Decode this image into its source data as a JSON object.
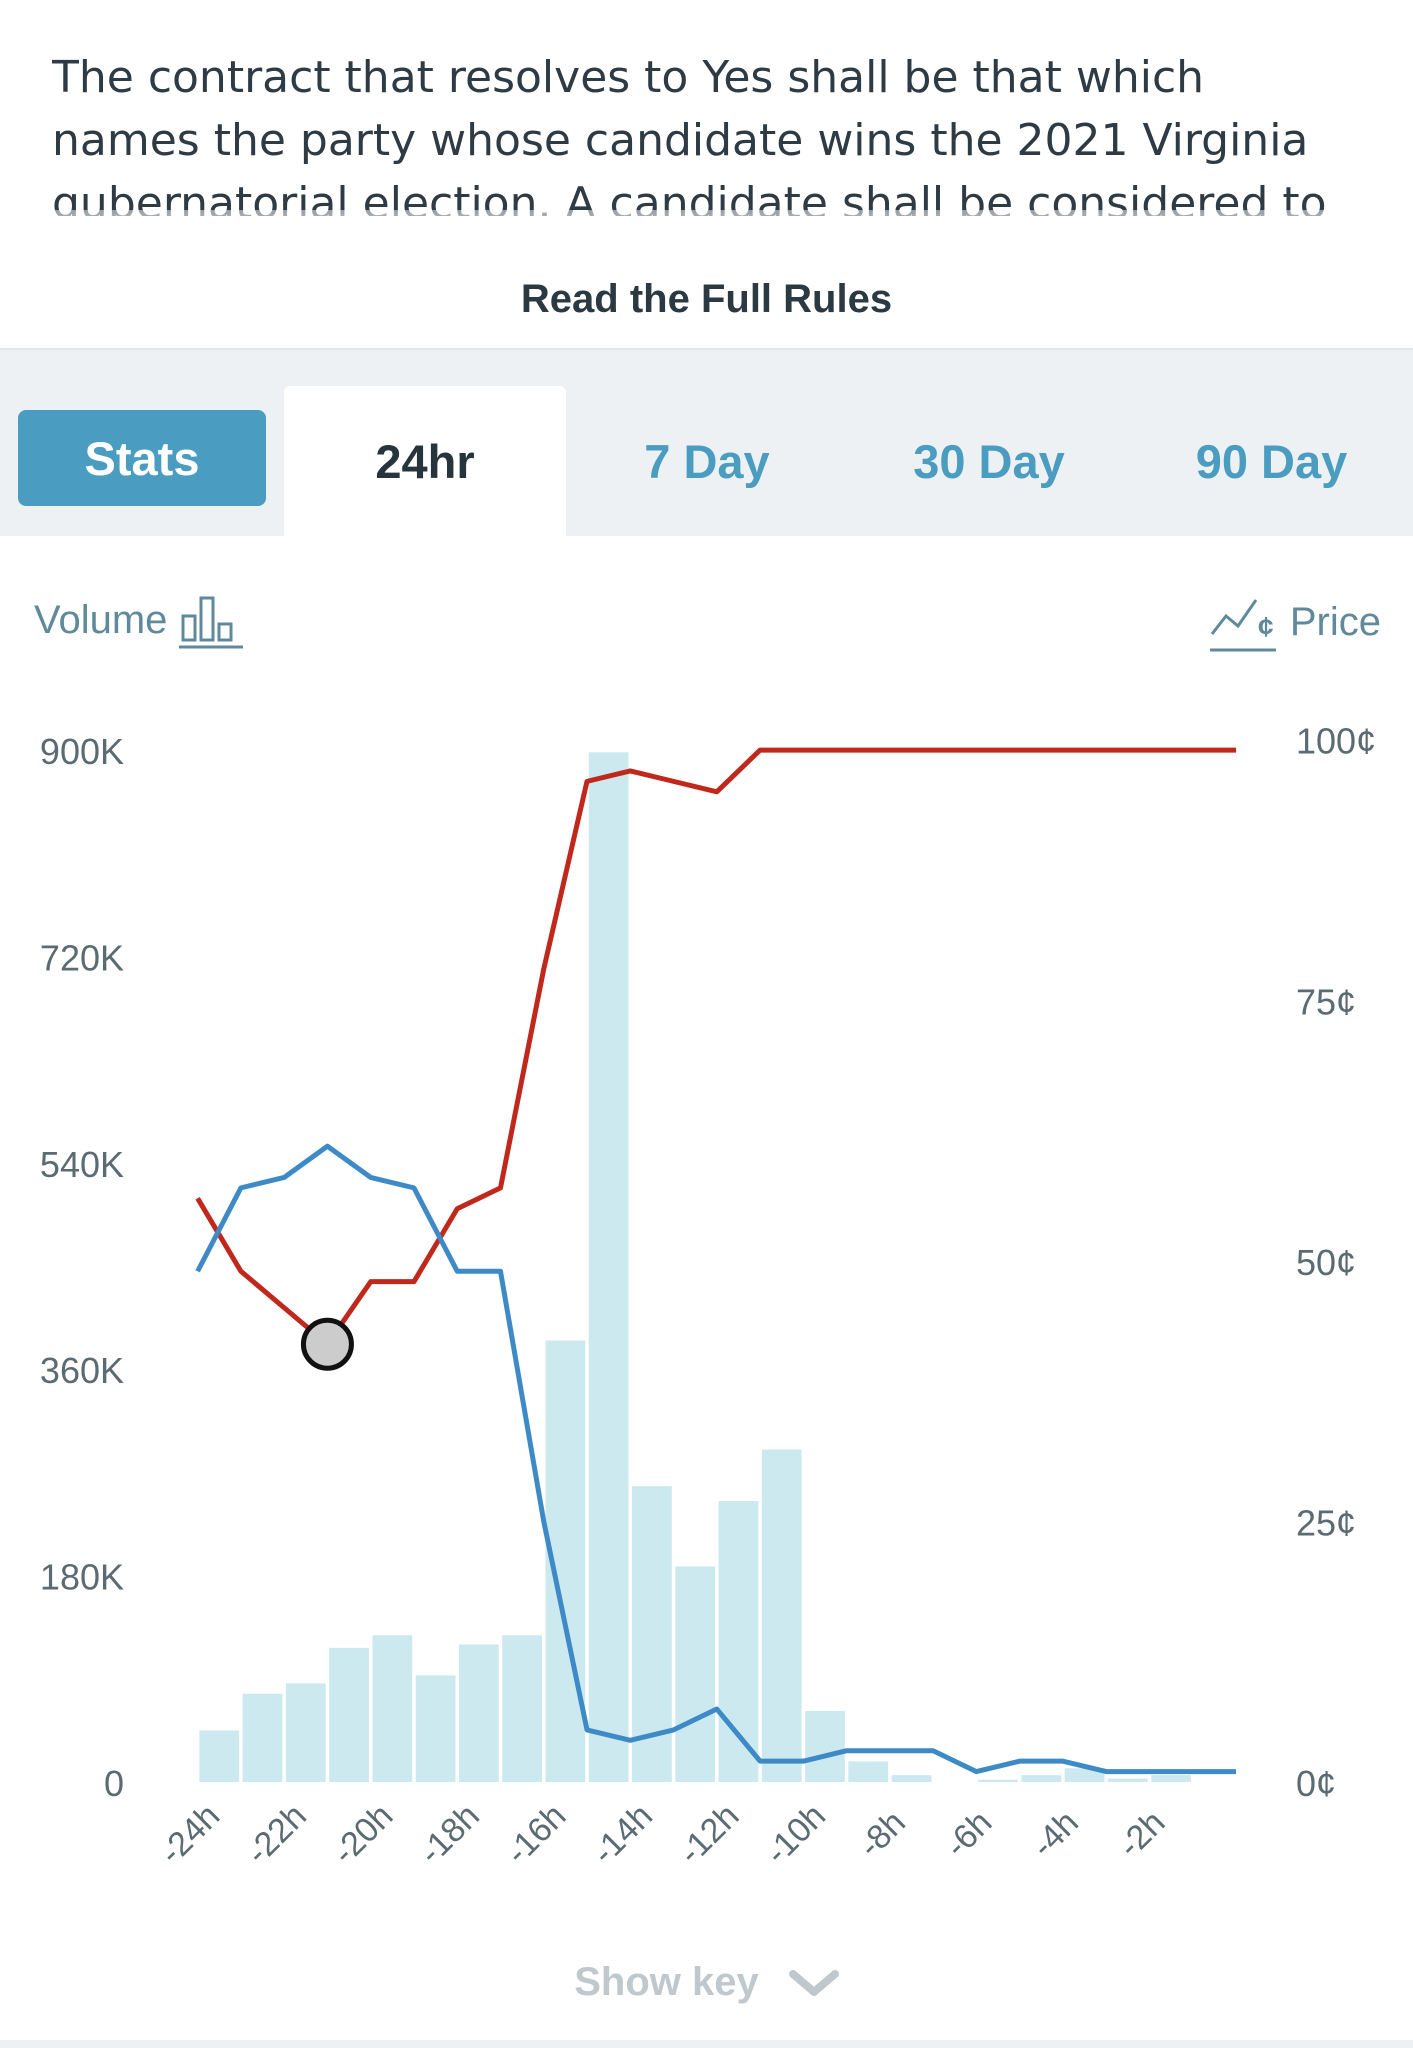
{
  "rules": {
    "text": "The contract that resolves to Yes shall be that which names the party whose candidate wins the 2021 Virginia gubernatorial election. A candidate shall be considered to",
    "read_full_label": "Read the Full Rules"
  },
  "tabs": [
    {
      "label": "Stats"
    },
    {
      "label": "24hr"
    },
    {
      "label": "7 Day"
    },
    {
      "label": "30 Day"
    },
    {
      "label": "90 Day"
    }
  ],
  "active_tab": "24hr",
  "legend": {
    "volume_label": "Volume",
    "volume_icon": "bar-chart-icon",
    "price_label": "Price",
    "price_icon": "price-trend-icon"
  },
  "show_key": {
    "label": "Show key",
    "icon": "chevron-down-icon"
  },
  "colors": {
    "accent": "#4a9dc0",
    "volume_bar": "#cde9f0",
    "red_series": "#c0281c",
    "blue_series": "#3d8ac7",
    "marker_fill": "#cccccc"
  },
  "chart_data": {
    "type": "bar+line",
    "x_ticks": [
      "-24h",
      "-22h",
      "-20h",
      "-18h",
      "-16h",
      "-14h",
      "-12h",
      "-10h",
      "-8h",
      "-6h",
      "-4h",
      "-2h"
    ],
    "x_hours": [
      -24,
      -23,
      -22,
      -21,
      -20,
      -19,
      -18,
      -17,
      -16,
      -15,
      -14,
      -13,
      -12,
      -11,
      -10,
      -9,
      -8,
      -7,
      -6,
      -5,
      -4,
      -3,
      -2,
      -1,
      0
    ],
    "x_range": [
      -24.5,
      0
    ],
    "volume": {
      "axis": "left",
      "ylim": [
        0,
        900000
      ],
      "ticks": [
        0,
        180000,
        360000,
        540000,
        720000,
        900000
      ],
      "tick_labels": [
        "0",
        "180K",
        "360K",
        "540K",
        "720K",
        "900K"
      ],
      "values": [
        45000,
        77000,
        86000,
        117000,
        128000,
        93000,
        120000,
        128000,
        385000,
        898000,
        258000,
        188000,
        245000,
        290000,
        62000,
        18000,
        6000,
        0,
        2000,
        6000,
        12000,
        3000,
        6000,
        0
      ]
    },
    "price": {
      "axis": "right",
      "ylim": [
        0,
        100
      ],
      "ticks": [
        0,
        25,
        50,
        75,
        100
      ],
      "tick_labels": [
        "0¢",
        "25¢",
        "50¢",
        "75¢",
        "100¢"
      ],
      "series": [
        {
          "color": "#c0281c",
          "values": [
            56,
            49,
            45.5,
            42,
            48,
            48,
            55,
            57,
            78,
            96,
            97,
            96,
            95,
            99,
            99,
            99,
            99,
            99,
            99,
            99,
            99,
            99,
            99,
            99,
            99
          ]
        },
        {
          "color": "#3d8ac7",
          "values": [
            49,
            57,
            58,
            61,
            58,
            57,
            49,
            49,
            25,
            5,
            4,
            5,
            7,
            2,
            2,
            3,
            3,
            3,
            1,
            2,
            2,
            1,
            1,
            1,
            1
          ]
        }
      ],
      "marker": {
        "x": -21,
        "y": 42
      }
    }
  }
}
